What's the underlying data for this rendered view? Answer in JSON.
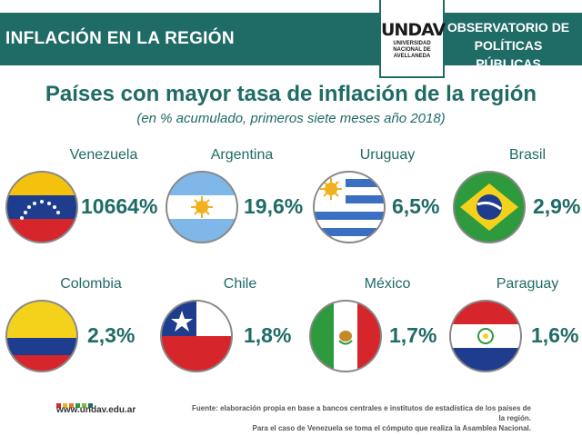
{
  "header": {
    "left_title": "INFLACIÓN EN LA REGIÓN",
    "right_line1": "OBSERVATORIO DE",
    "right_line2": "POLÍTICAS PÚBLICAS",
    "logo_text": "UNDAV",
    "logo_sub1": "UNIVERSIDAD",
    "logo_sub2": "NACIONAL DE",
    "logo_sub3": "AVELLANEDA"
  },
  "main": {
    "title": "Países con mayor tasa de inflación de la región",
    "subtitle": "(en % acumulado, primeros siete meses año 2018)"
  },
  "countries": [
    {
      "name": "Venezuela",
      "value": "10664%"
    },
    {
      "name": "Argentina",
      "value": "19,6%"
    },
    {
      "name": "Uruguay",
      "value": "6,5%"
    },
    {
      "name": "Brasil",
      "value": "2,9%"
    },
    {
      "name": "Colombia",
      "value": "2,3%"
    },
    {
      "name": "Chile",
      "value": "1,8%"
    },
    {
      "name": "México",
      "value": "1,7%"
    },
    {
      "name": "Paraguay",
      "value": "1,6%"
    }
  ],
  "footer": {
    "url": "www.undav.edu.ar",
    "source_line1": "Fuente: elaboración propia en base a bancos centrales e institutos de estadística de los países de la región.",
    "source_line2": "Para el caso de Venezuela se toma el cómputo que realiza la Asamblea Nacional."
  },
  "colors": {
    "accent": "#1f6b66"
  }
}
